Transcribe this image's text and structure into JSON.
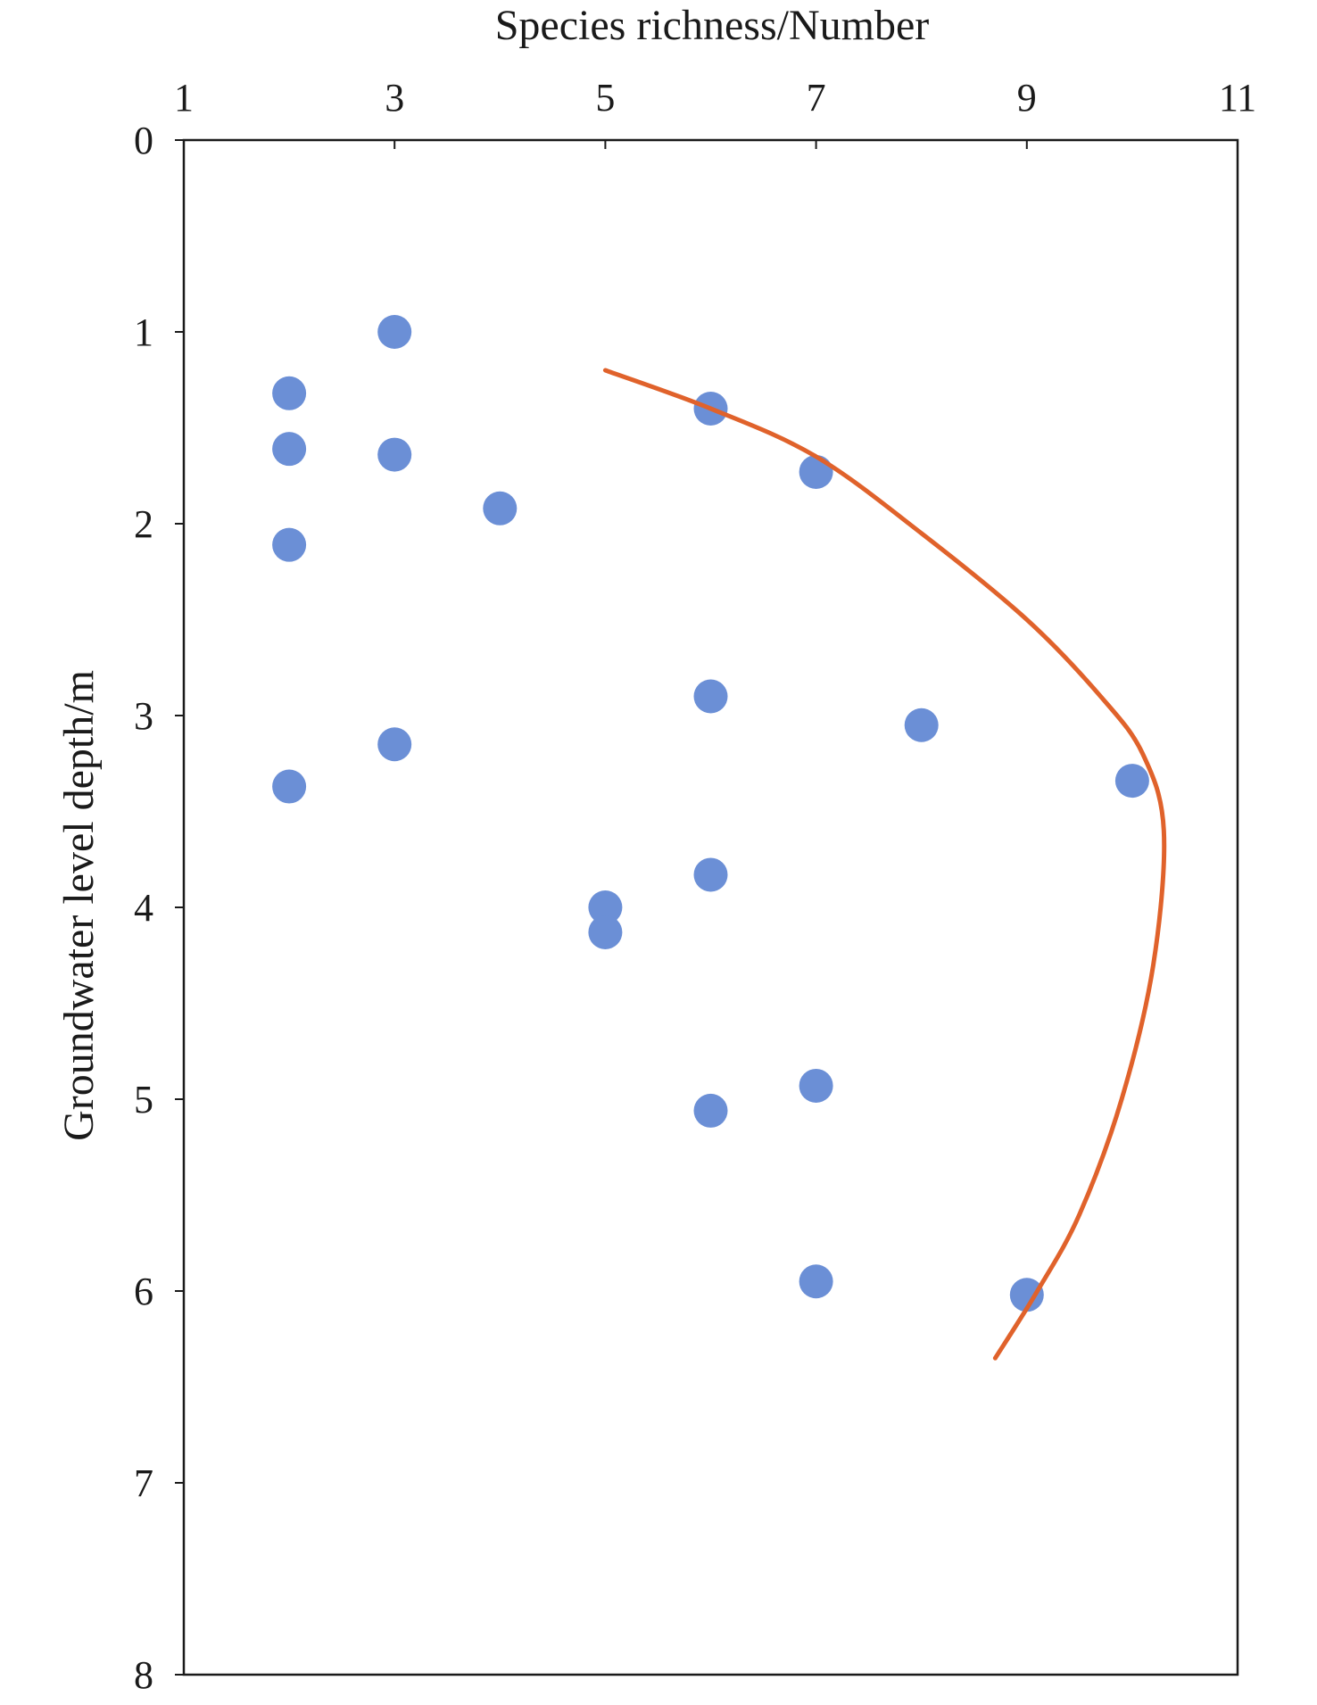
{
  "chart_data": {
    "type": "scatter",
    "xlabel": "Species richness/Number",
    "ylabel": "Groundwater level depth/m",
    "xlim": [
      1,
      11
    ],
    "ylim": [
      0,
      8
    ],
    "y_inverted": true,
    "x_axis_position": "top",
    "x_ticks": [
      1,
      3,
      5,
      7,
      9,
      11
    ],
    "y_ticks": [
      0,
      1,
      2,
      3,
      4,
      5,
      6,
      7,
      8
    ],
    "grid": false,
    "legend": "none",
    "series": [
      {
        "kind": "scatter",
        "color": "#6b8fd6",
        "points": [
          {
            "x": 3,
            "y": 1.0
          },
          {
            "x": 2,
            "y": 1.32
          },
          {
            "x": 6,
            "y": 1.4
          },
          {
            "x": 2,
            "y": 1.61
          },
          {
            "x": 3,
            "y": 1.64
          },
          {
            "x": 7,
            "y": 1.73
          },
          {
            "x": 4,
            "y": 1.92
          },
          {
            "x": 2,
            "y": 2.11
          },
          {
            "x": 6,
            "y": 2.9
          },
          {
            "x": 8,
            "y": 3.05
          },
          {
            "x": 3,
            "y": 3.15
          },
          {
            "x": 10,
            "y": 3.34
          },
          {
            "x": 2,
            "y": 3.37
          },
          {
            "x": 6,
            "y": 3.83
          },
          {
            "x": 5,
            "y": 4.0
          },
          {
            "x": 5,
            "y": 4.13
          },
          {
            "x": 7,
            "y": 4.93
          },
          {
            "x": 6,
            "y": 5.06
          },
          {
            "x": 7,
            "y": 5.95
          },
          {
            "x": 9,
            "y": 6.02
          }
        ]
      },
      {
        "kind": "line",
        "color": "#e0622b",
        "points": [
          {
            "x": 5.0,
            "y": 1.2
          },
          {
            "x": 6.0,
            "y": 1.4
          },
          {
            "x": 7.0,
            "y": 1.65
          },
          {
            "x": 8.0,
            "y": 2.05
          },
          {
            "x": 9.0,
            "y": 2.5
          },
          {
            "x": 9.7,
            "y": 2.9
          },
          {
            "x": 10.1,
            "y": 3.2
          },
          {
            "x": 10.3,
            "y": 3.6
          },
          {
            "x": 10.2,
            "y": 4.3
          },
          {
            "x": 9.9,
            "y": 5.0
          },
          {
            "x": 9.5,
            "y": 5.6
          },
          {
            "x": 9.1,
            "y": 6.0
          },
          {
            "x": 8.7,
            "y": 6.35
          }
        ]
      }
    ]
  }
}
